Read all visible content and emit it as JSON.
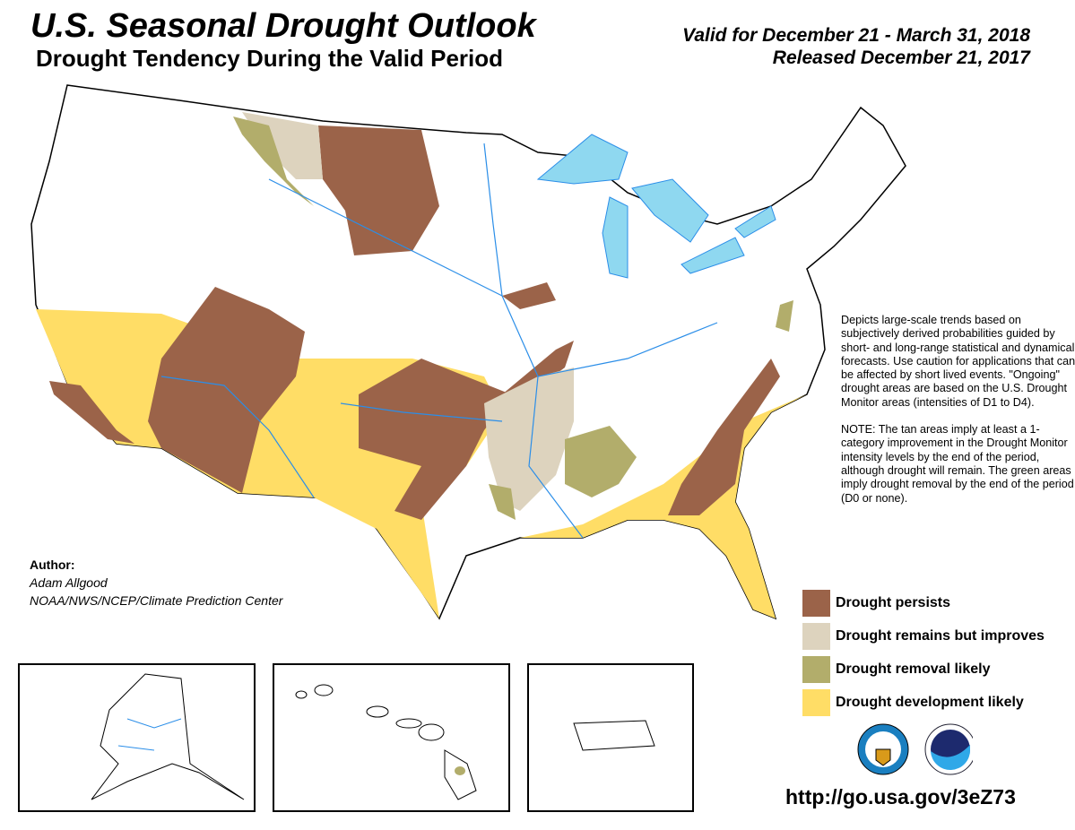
{
  "header": {
    "title": "U.S. Seasonal Drought Outlook",
    "subtitle": "Drought Tendency During the Valid Period",
    "valid": "Valid for December 21 - March 31, 2018",
    "released": "Released December 21, 2017"
  },
  "description": {
    "paragraph1": "Depicts large-scale trends based on subjectively derived probabilities guided by short- and long-range statistical and dynamical forecasts. Use caution for applications that can be affected by short lived events. \"Ongoing\" drought areas are based on the U.S. Drought Monitor areas (intensities of D1 to D4).",
    "paragraph2": "NOTE: The tan areas imply at least a 1-category improvement in the Drought Monitor intensity levels by the end of the period, although drought will remain. The green areas imply drought removal by the end of the period (D0 or none)."
  },
  "legend": [
    {
      "label": "Drought persists",
      "color": "#9b6349"
    },
    {
      "label": "Drought remains but improves",
      "color": "#ddd3be"
    },
    {
      "label": "Drought removal likely",
      "color": "#b2ad6b"
    },
    {
      "label": "Drought development likely",
      "color": "#ffdd66"
    }
  ],
  "author": {
    "heading": "Author:",
    "name": "Adam Allgood",
    "org": "NOAA/NWS/NCEP/Climate Prediction Center"
  },
  "insets": [
    "Alaska",
    "Hawaii",
    "Puerto Rico"
  ],
  "logos": [
    "dept-of-commerce-seal",
    "noaa-logo"
  ],
  "colors": {
    "water": "#8fd8f0",
    "rivers": "#2b8ee8",
    "state_lines": "#000000"
  },
  "url": "http://go.usa.gov/3eZ73"
}
